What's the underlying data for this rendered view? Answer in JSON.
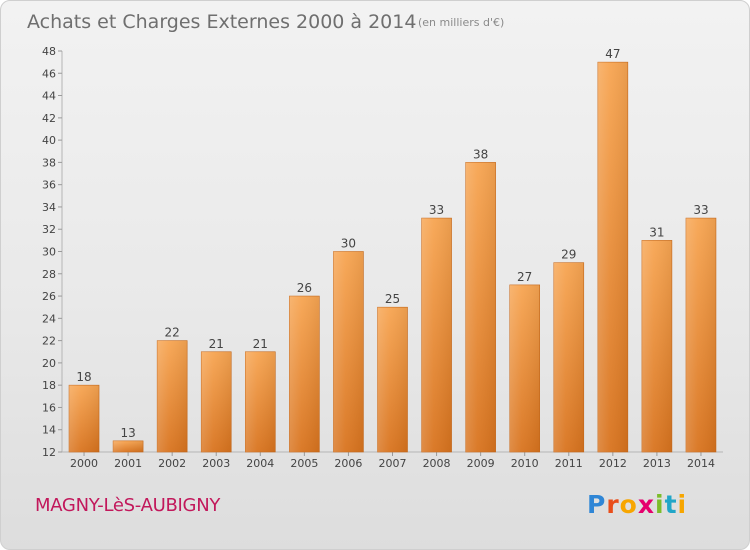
{
  "header": {
    "title": "Achats et Charges Externes 2000 à 2014",
    "subtitle": "(en milliers d'€)"
  },
  "footer": {
    "commune": "MAGNY-LèS-AUBIGNY",
    "logo_text": "Proxiti"
  },
  "colors": {
    "bar_top": "#f7a552",
    "bar_bottom": "#d8731e",
    "axis_text": "#444444",
    "grid": "#dddddd",
    "commune_text": "#c2185b"
  },
  "chart_data": {
    "type": "bar",
    "categories": [
      "2000",
      "2001",
      "2002",
      "2003",
      "2004",
      "2005",
      "2006",
      "2007",
      "2008",
      "2009",
      "2010",
      "2011",
      "2012",
      "2013",
      "2014"
    ],
    "values": [
      18,
      13,
      22,
      21,
      21,
      26,
      30,
      25,
      33,
      38,
      27,
      29,
      47,
      31,
      33
    ],
    "data_labels": [
      "18",
      "13",
      "22",
      "21",
      "21",
      "26",
      "30",
      "25",
      "33",
      "38",
      "27",
      "29",
      "47",
      "31",
      "33"
    ],
    "title": "Achats et Charges Externes 2000 à 2014",
    "subtitle": "(en milliers d'€)",
    "xlabel": "",
    "ylabel": "",
    "ylim": [
      12,
      48
    ],
    "yticks": [
      "12",
      "14",
      "16",
      "18",
      "20",
      "22",
      "24",
      "26",
      "28",
      "30",
      "32",
      "34",
      "36",
      "38",
      "40",
      "42",
      "44",
      "46",
      "48"
    ],
    "grid": false,
    "legend": "none"
  }
}
